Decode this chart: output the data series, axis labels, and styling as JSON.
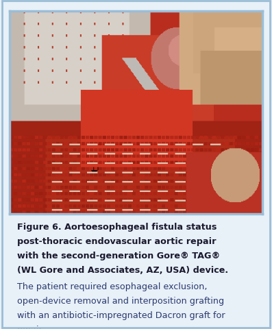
{
  "bold_lines": [
    "Figure 6. Aortoesophageal fistula status",
    "post-thoracic endovascular aortic repair",
    "with the second-generation Gore® TAG®",
    "(WL Gore and Associates, AZ, USA) device."
  ],
  "normal_lines": [
    "The patient required esophageal exclusion,",
    "open-device removal and interposition grafting",
    "with an antibiotic-impregnated Dacron graft for",
    "repair."
  ],
  "bg_color": "#e8f0f8",
  "text_bg_color": "#edf2f7",
  "border_color": "#9bbdd6",
  "img_border_color": "#9bbdd6",
  "bold_text_color": "#1a1a2e",
  "normal_text_color": "#2a3a6e",
  "fig_width": 3.97,
  "fig_height": 4.81,
  "dpi": 100,
  "caption_fontsize": 9.2
}
